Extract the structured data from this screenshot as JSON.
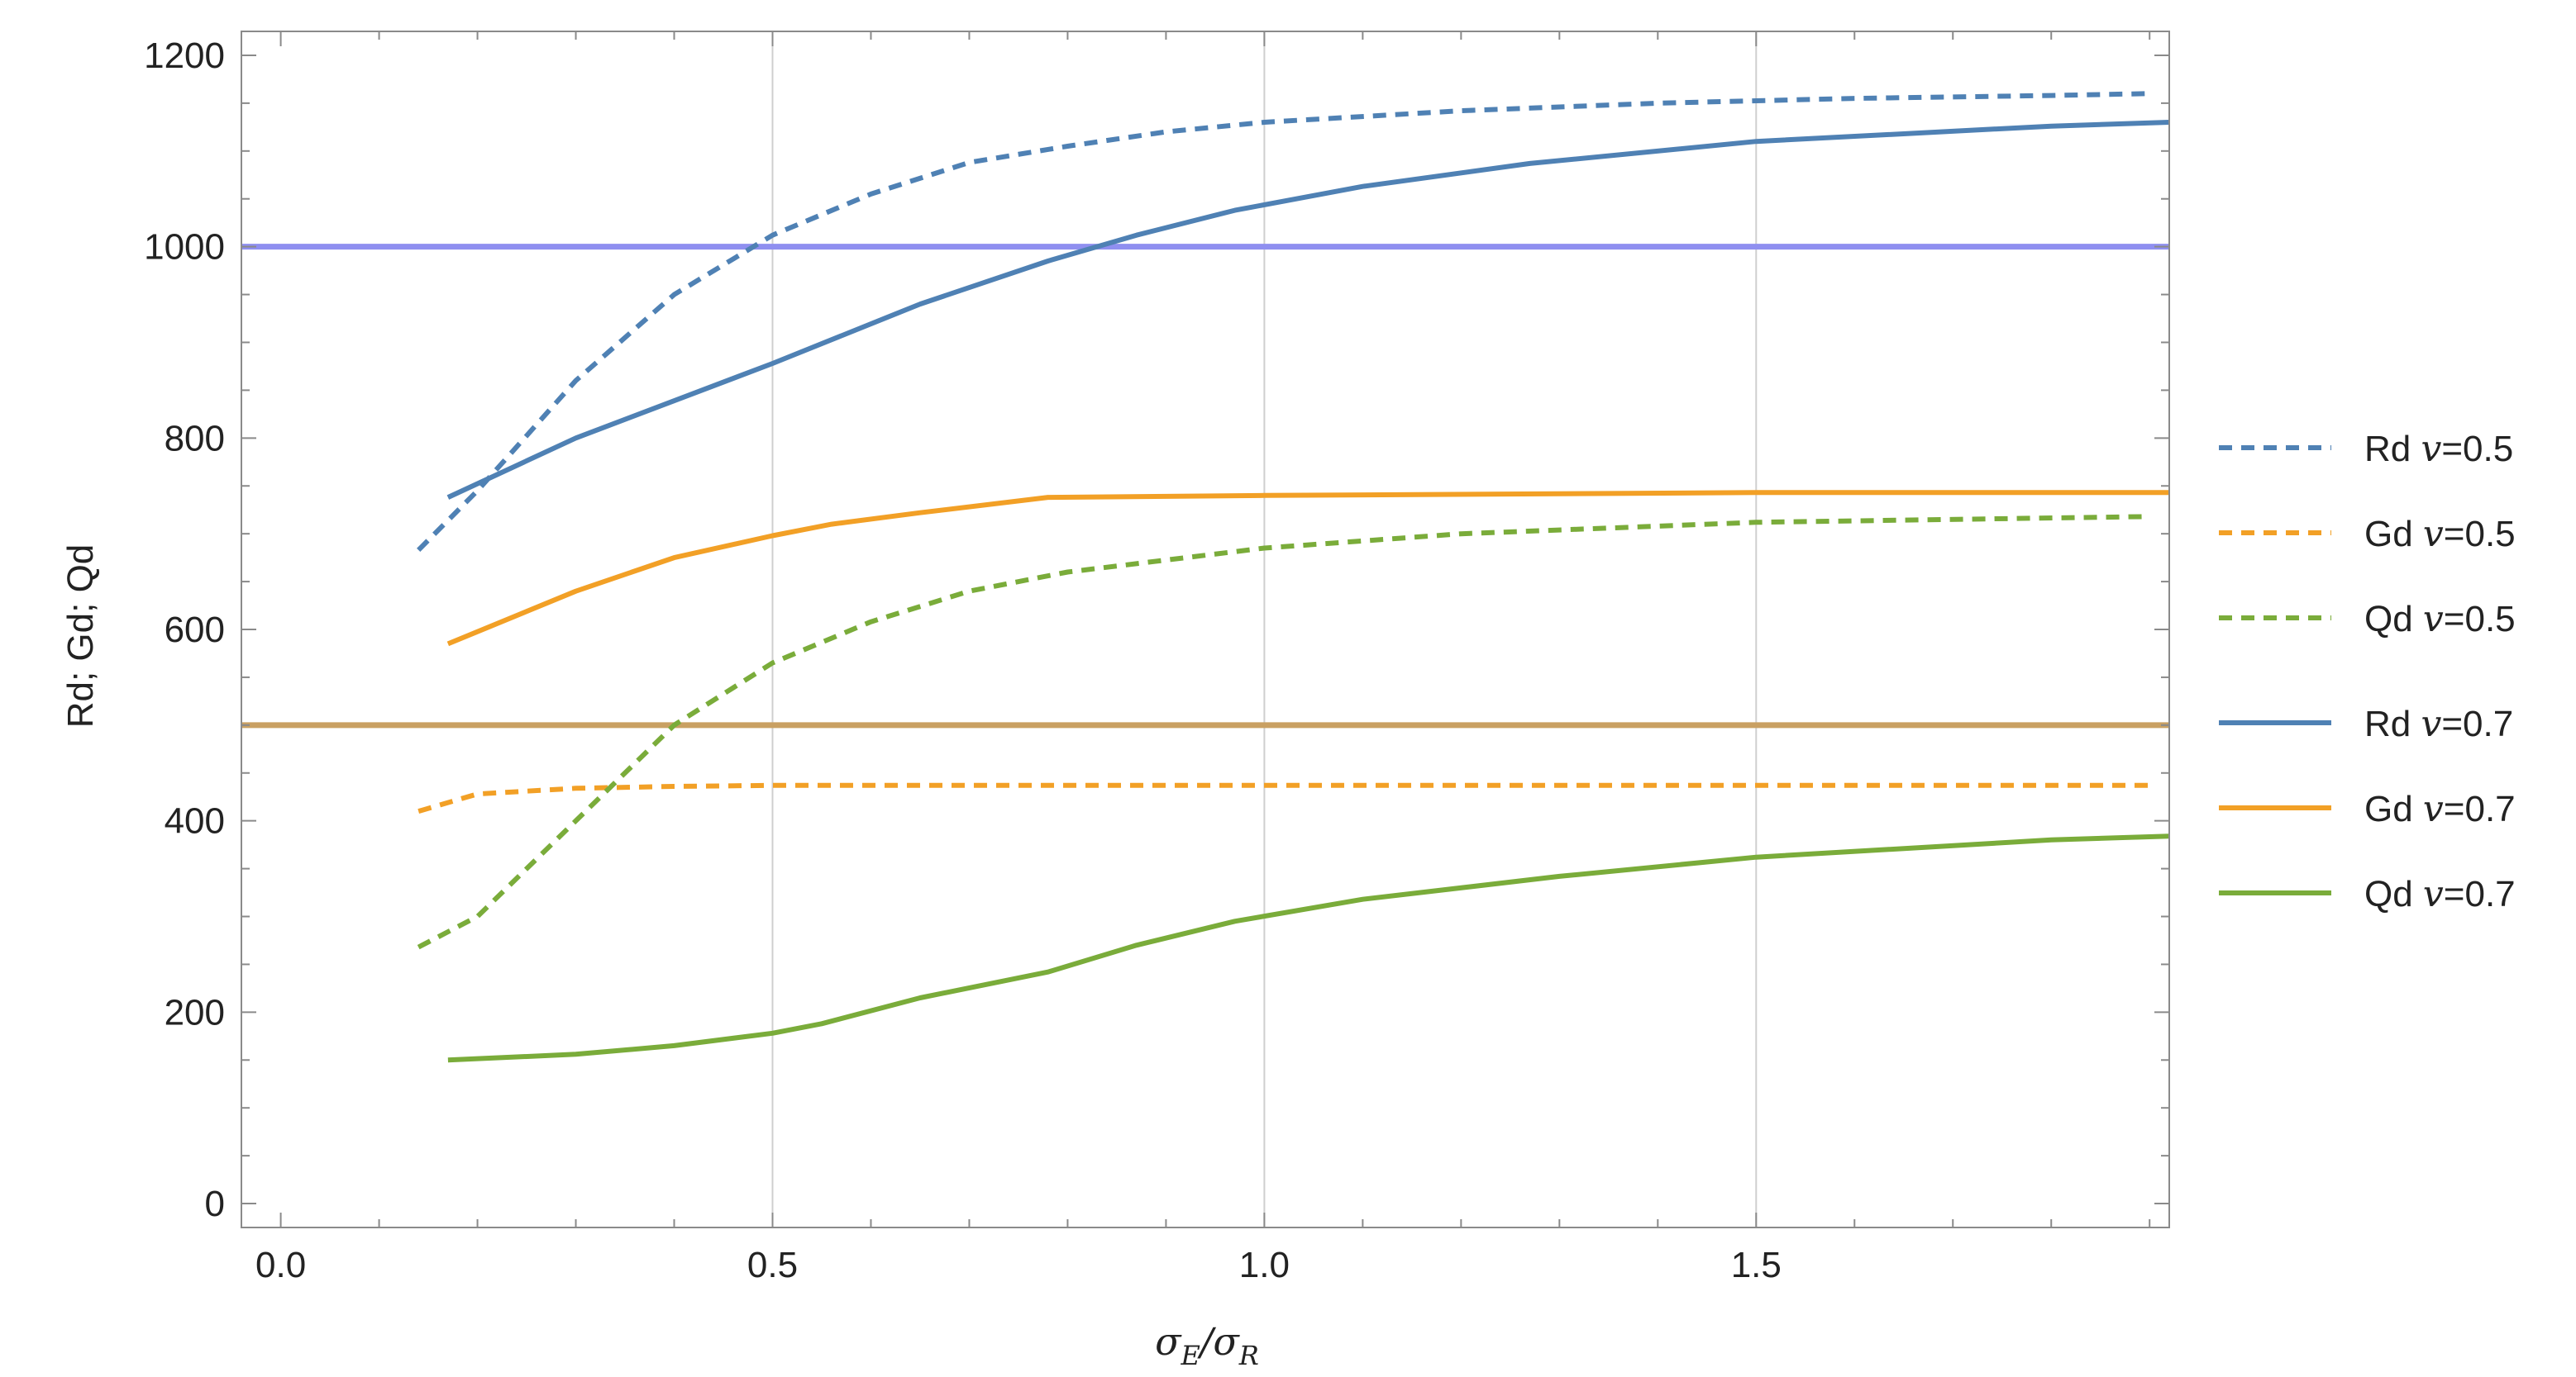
{
  "chart_data": {
    "type": "line",
    "title": "",
    "xlabel_parts": [
      "σ",
      "E",
      "/σ",
      "R"
    ],
    "ylabel": "Rd; Gd; Qd",
    "xlim": [
      -0.04,
      1.92
    ],
    "ylim": [
      -25,
      1225
    ],
    "x_ticks": [
      0.0,
      0.5,
      1.0,
      1.5
    ],
    "x_tick_labels": [
      "0.0",
      "0.5",
      "1.0",
      "1.5"
    ],
    "y_ticks": [
      0,
      200,
      400,
      600,
      800,
      1000,
      1200
    ],
    "y_tick_labels": [
      "0",
      "200",
      "400",
      "600",
      "800",
      "1000",
      "1200"
    ],
    "x_gridlines": [
      0.5,
      1.0,
      1.5
    ],
    "reference_lines": [
      {
        "name": "ref-1000",
        "y": 1000,
        "color": "#8f8ff0"
      },
      {
        "name": "ref-500",
        "y": 500,
        "color": "#c9a062"
      }
    ],
    "series": [
      {
        "name": "Rd",
        "v_label": "v",
        "v_value": "=0.5",
        "color": "#4f81b4",
        "dashed": true,
        "x": [
          0.14,
          0.2,
          0.3,
          0.4,
          0.5,
          0.6,
          0.7,
          0.8,
          0.9,
          1.0,
          1.2,
          1.4,
          1.6,
          1.8,
          1.9
        ],
        "y": [
          683,
          745,
          860,
          950,
          1012,
          1055,
          1088,
          1105,
          1120,
          1130,
          1142,
          1150,
          1155,
          1158,
          1160
        ]
      },
      {
        "name": "Gd",
        "v_label": "v",
        "v_value": "=0.5",
        "color": "#f2a026",
        "dashed": true,
        "x": [
          0.14,
          0.2,
          0.3,
          0.4,
          0.5,
          0.8,
          1.2,
          1.6,
          1.9
        ],
        "y": [
          410,
          428,
          434,
          436,
          437,
          437,
          437,
          437,
          437
        ]
      },
      {
        "name": "Qd",
        "v_label": "v",
        "v_value": "=0.5",
        "color": "#7aac3a",
        "dashed": true,
        "x": [
          0.14,
          0.2,
          0.3,
          0.4,
          0.5,
          0.6,
          0.7,
          0.8,
          1.0,
          1.2,
          1.5,
          1.9
        ],
        "y": [
          268,
          300,
          400,
          500,
          565,
          608,
          640,
          660,
          685,
          700,
          712,
          718
        ]
      },
      {
        "name": "Rd",
        "v_label": "v",
        "v_value": "=0.7",
        "color": "#4f81b4",
        "dashed": false,
        "x": [
          0.17,
          0.3,
          0.5,
          0.65,
          0.78,
          0.87,
          0.97,
          1.1,
          1.27,
          1.5,
          1.8,
          1.92
        ],
        "y": [
          738,
          800,
          878,
          940,
          985,
          1012,
          1038,
          1063,
          1087,
          1110,
          1126,
          1130
        ]
      },
      {
        "name": "Gd",
        "v_label": "v",
        "v_value": "=0.7",
        "color": "#f2a026",
        "dashed": false,
        "x": [
          0.17,
          0.3,
          0.4,
          0.5,
          0.56,
          0.65,
          0.78,
          1.0,
          1.5,
          1.92
        ],
        "y": [
          585,
          640,
          675,
          698,
          710,
          722,
          738,
          740,
          743,
          743
        ]
      },
      {
        "name": "Qd",
        "v_label": "v",
        "v_value": "=0.7",
        "color": "#7aac3a",
        "dashed": false,
        "x": [
          0.17,
          0.3,
          0.4,
          0.5,
          0.55,
          0.65,
          0.78,
          0.87,
          0.97,
          1.1,
          1.3,
          1.5,
          1.8,
          1.92
        ],
        "y": [
          150,
          156,
          165,
          178,
          188,
          215,
          242,
          270,
          295,
          318,
          342,
          362,
          380,
          384
        ]
      }
    ],
    "legend_position": "right"
  }
}
